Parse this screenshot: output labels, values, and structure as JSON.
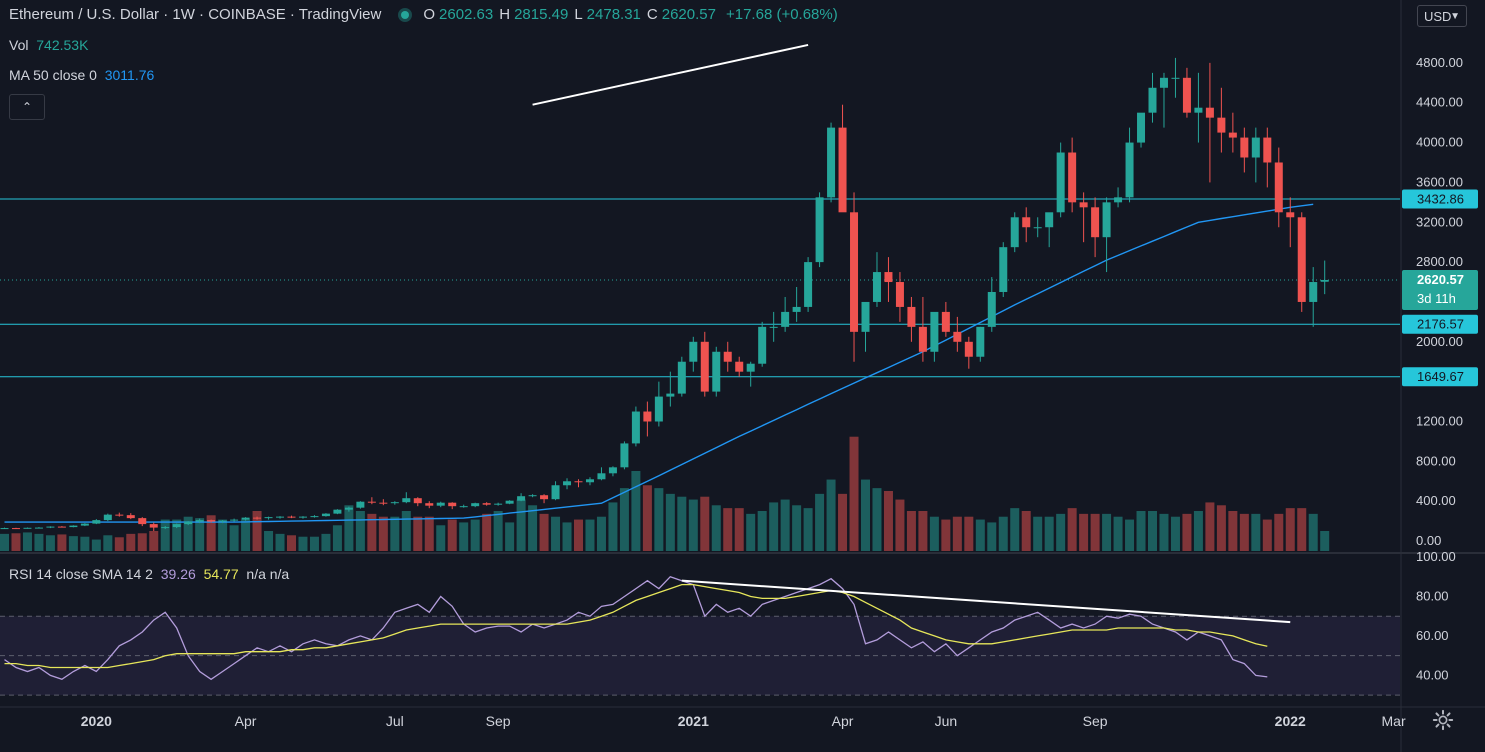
{
  "header": {
    "title": "Ethereum / U.S. Dollar · 1W · COINBASE · TradingView",
    "ohlc": [
      {
        "key": "O",
        "value": "2602.63"
      },
      {
        "key": "H",
        "value": "2815.49"
      },
      {
        "key": "L",
        "value": "2478.31"
      },
      {
        "key": "C",
        "value": "2620.57"
      }
    ],
    "change": "+17.68 (+0.68%)"
  },
  "volume_legend": {
    "label": "Vol",
    "value": "742.53K"
  },
  "ma_legend": {
    "label": "MA 50 close 0",
    "value": "3011.76"
  },
  "rsi_legend": {
    "label": "RSI 14 close SMA 14 2",
    "rsi_value": "39.26",
    "sma_value": "54.77",
    "na": "n/a n/a"
  },
  "currency": "USD",
  "colors": {
    "up": "#26a69a",
    "down": "#ef5350",
    "ma": "#2196f3",
    "rsi": "#b39ddb",
    "rsi_sma": "#e6e65a",
    "level": "#26c6da"
  },
  "chart_data": {
    "type": "candlestick",
    "timeframe": "1W",
    "price_axis": {
      "ticks": [
        "4800.00",
        "4400.00",
        "4000.00",
        "3600.00",
        "3200.00",
        "2800.00",
        "2000.00",
        "1200.00",
        "800.00",
        "400.00",
        "0.00"
      ],
      "range": [
        -100,
        5150
      ]
    },
    "time_axis": {
      "ticks": [
        "2020",
        "Apr",
        "Jul",
        "Sep",
        "2021",
        "Apr",
        "Jun",
        "Sep",
        "2022",
        "Mar"
      ]
    },
    "price_labels": [
      {
        "text": "3432.86",
        "kind": "level"
      },
      {
        "text": "2620.57",
        "sub": "3d 11h",
        "kind": "last"
      },
      {
        "text": "2176.57",
        "kind": "level"
      },
      {
        "text": "1649.67",
        "kind": "level"
      }
    ],
    "horizontal_levels": [
      3432.86,
      2176.57,
      1649.67
    ],
    "last_price": 2620.57,
    "trendline": {
      "from": [
        46,
        4380
      ],
      "to": [
        70,
        4980
      ]
    },
    "ohlc_weekly": [
      [
        130,
        135,
        125,
        130
      ],
      [
        130,
        133,
        126,
        128
      ],
      [
        128,
        136,
        124,
        133
      ],
      [
        133,
        140,
        127,
        135
      ],
      [
        135,
        148,
        130,
        145
      ],
      [
        145,
        150,
        138,
        140
      ],
      [
        140,
        158,
        138,
        155
      ],
      [
        155,
        180,
        150,
        175
      ],
      [
        175,
        220,
        170,
        210
      ],
      [
        210,
        275,
        200,
        265
      ],
      [
        265,
        285,
        245,
        260
      ],
      [
        260,
        280,
        220,
        230
      ],
      [
        230,
        240,
        150,
        170
      ],
      [
        170,
        185,
        100,
        135
      ],
      [
        135,
        150,
        120,
        140
      ],
      [
        140,
        175,
        130,
        170
      ],
      [
        170,
        200,
        160,
        195
      ],
      [
        195,
        225,
        180,
        210
      ],
      [
        210,
        215,
        185,
        195
      ],
      [
        195,
        210,
        180,
        205
      ],
      [
        205,
        225,
        195,
        215
      ],
      [
        215,
        240,
        205,
        235
      ],
      [
        235,
        245,
        215,
        230
      ],
      [
        230,
        245,
        215,
        240
      ],
      [
        240,
        250,
        225,
        245
      ],
      [
        245,
        255,
        230,
        240
      ],
      [
        240,
        250,
        225,
        245
      ],
      [
        245,
        260,
        235,
        250
      ],
      [
        250,
        280,
        245,
        275
      ],
      [
        275,
        320,
        270,
        315
      ],
      [
        315,
        345,
        295,
        335
      ],
      [
        335,
        400,
        325,
        395
      ],
      [
        395,
        440,
        370,
        385
      ],
      [
        385,
        420,
        360,
        380
      ],
      [
        380,
        400,
        365,
        390
      ],
      [
        390,
        490,
        380,
        430
      ],
      [
        430,
        440,
        350,
        380
      ],
      [
        380,
        400,
        330,
        355
      ],
      [
        355,
        395,
        340,
        385
      ],
      [
        385,
        390,
        320,
        350
      ],
      [
        350,
        365,
        335,
        350
      ],
      [
        350,
        385,
        340,
        380
      ],
      [
        380,
        390,
        355,
        365
      ],
      [
        365,
        385,
        355,
        375
      ],
      [
        375,
        410,
        370,
        405
      ],
      [
        405,
        480,
        400,
        450
      ],
      [
        450,
        470,
        440,
        460
      ],
      [
        460,
        470,
        380,
        420
      ],
      [
        420,
        600,
        410,
        560
      ],
      [
        560,
        630,
        520,
        600
      ],
      [
        600,
        620,
        540,
        590
      ],
      [
        590,
        640,
        560,
        620
      ],
      [
        620,
        740,
        610,
        680
      ],
      [
        680,
        750,
        650,
        740
      ],
      [
        740,
        1000,
        720,
        980
      ],
      [
        980,
        1350,
        950,
        1300
      ],
      [
        1300,
        1400,
        1050,
        1200
      ],
      [
        1200,
        1600,
        1150,
        1450
      ],
      [
        1450,
        1700,
        1350,
        1480
      ],
      [
        1480,
        1850,
        1450,
        1800
      ],
      [
        1800,
        2050,
        1700,
        2000
      ],
      [
        2000,
        2100,
        1450,
        1500
      ],
      [
        1500,
        1950,
        1450,
        1900
      ],
      [
        1900,
        2000,
        1700,
        1800
      ],
      [
        1800,
        1850,
        1650,
        1700
      ],
      [
        1700,
        1800,
        1550,
        1780
      ],
      [
        1780,
        2200,
        1750,
        2150
      ],
      [
        2150,
        2300,
        2000,
        2150
      ],
      [
        2150,
        2450,
        2100,
        2300
      ],
      [
        2300,
        2550,
        2200,
        2350
      ],
      [
        2350,
        2850,
        2300,
        2800
      ],
      [
        2800,
        3500,
        2750,
        3450
      ],
      [
        3450,
        4200,
        3400,
        4150
      ],
      [
        4150,
        4380,
        3500,
        3300
      ],
      [
        3300,
        3500,
        1800,
        2100
      ],
      [
        2100,
        2350,
        1900,
        2400
      ],
      [
        2400,
        2900,
        2350,
        2700
      ],
      [
        2700,
        2850,
        2400,
        2600
      ],
      [
        2600,
        2700,
        2200,
        2350
      ],
      [
        2350,
        2450,
        2000,
        2150
      ],
      [
        2150,
        2450,
        1800,
        1900
      ],
      [
        1900,
        2250,
        1800,
        2300
      ],
      [
        2300,
        2400,
        2050,
        2100
      ],
      [
        2100,
        2250,
        1900,
        2000
      ],
      [
        2000,
        2050,
        1730,
        1850
      ],
      [
        1850,
        2150,
        1800,
        2150
      ],
      [
        2150,
        2650,
        2100,
        2500
      ],
      [
        2500,
        3000,
        2450,
        2950
      ],
      [
        2950,
        3300,
        2900,
        3250
      ],
      [
        3250,
        3350,
        3000,
        3150
      ],
      [
        3150,
        3250,
        3050,
        3150
      ],
      [
        3150,
        3250,
        2950,
        3300
      ],
      [
        3300,
        4000,
        3250,
        3900
      ],
      [
        3900,
        4050,
        3300,
        3400
      ],
      [
        3400,
        3500,
        3000,
        3350
      ],
      [
        3350,
        3450,
        2850,
        3050
      ],
      [
        3050,
        3450,
        2700,
        3400
      ],
      [
        3400,
        3550,
        3350,
        3450
      ],
      [
        3450,
        4150,
        3400,
        4000
      ],
      [
        4000,
        4250,
        3950,
        4300
      ],
      [
        4300,
        4700,
        4200,
        4550
      ],
      [
        4550,
        4700,
        4150,
        4650
      ],
      [
        4650,
        4850,
        4450,
        4650
      ],
      [
        4650,
        4750,
        4250,
        4300
      ],
      [
        4300,
        4700,
        4000,
        4350
      ],
      [
        4350,
        4800,
        3600,
        4250
      ],
      [
        4250,
        4550,
        3900,
        4100
      ],
      [
        4100,
        4300,
        3900,
        4050
      ],
      [
        4050,
        4150,
        3700,
        3850
      ],
      [
        3850,
        4150,
        3600,
        4050
      ],
      [
        4050,
        4150,
        3550,
        3800
      ],
      [
        3800,
        3950,
        3150,
        3300
      ],
      [
        3300,
        3450,
        2950,
        3250
      ],
      [
        3250,
        3300,
        2300,
        2400
      ],
      [
        2400,
        2750,
        2150,
        2600
      ],
      [
        2602.63,
        2815.49,
        2478.31,
        2620.57
      ]
    ],
    "volume": [
      0.6,
      0.62,
      0.65,
      0.6,
      0.55,
      0.58,
      0.52,
      0.5,
      0.4,
      0.55,
      0.48,
      0.6,
      0.62,
      0.7,
      1.1,
      1.1,
      1.2,
      1.15,
      1.25,
      1.1,
      0.9,
      1.1,
      1.4,
      0.7,
      0.6,
      0.55,
      0.5,
      0.5,
      0.6,
      0.9,
      1.6,
      1.4,
      1.3,
      1.2,
      1.2,
      1.4,
      1.2,
      1.2,
      0.9,
      1.1,
      1.0,
      1.1,
      1.3,
      1.4,
      1.0,
      1.8,
      1.6,
      1.3,
      1.2,
      1.0,
      1.1,
      1.1,
      1.2,
      1.7,
      2.2,
      2.8,
      2.3,
      2.2,
      2.0,
      1.9,
      1.8,
      1.9,
      1.6,
      1.5,
      1.5,
      1.3,
      1.4,
      1.7,
      1.8,
      1.6,
      1.5,
      2.0,
      2.5,
      2.0,
      4.0,
      2.5,
      2.2,
      2.1,
      1.8,
      1.4,
      1.4,
      1.2,
      1.1,
      1.2,
      1.2,
      1.1,
      1.0,
      1.2,
      1.5,
      1.4,
      1.2,
      1.2,
      1.3,
      1.5,
      1.3,
      1.3,
      1.3,
      1.2,
      1.1,
      1.4,
      1.4,
      1.3,
      1.2,
      1.3,
      1.4,
      1.7,
      1.6,
      1.4,
      1.3,
      1.3,
      1.1,
      1.3,
      1.5,
      1.5,
      1.3,
      0.7
    ],
    "volume_scale_max": 4.2,
    "ma50_anchors": [
      [
        0,
        190
      ],
      [
        20,
        190
      ],
      [
        40,
        230
      ],
      [
        52,
        380
      ],
      [
        56,
        600
      ],
      [
        64,
        1050
      ],
      [
        72,
        1480
      ],
      [
        80,
        1900
      ],
      [
        88,
        2370
      ],
      [
        96,
        2820
      ],
      [
        104,
        3200
      ],
      [
        112,
        3350
      ],
      [
        114,
        3380
      ]
    ],
    "rsi": {
      "axis_ticks": [
        "100.00",
        "80.00",
        "60.00",
        "40.00"
      ],
      "range": [
        25,
        100
      ],
      "bands": {
        "upper": 70,
        "lower": 30
      },
      "values": [
        48,
        44,
        42,
        44,
        40,
        38,
        42,
        45,
        42,
        48,
        55,
        58,
        62,
        68,
        72,
        64,
        50,
        42,
        38,
        42,
        46,
        50,
        54,
        52,
        55,
        52,
        56,
        58,
        56,
        55,
        58,
        60,
        58,
        64,
        72,
        74,
        76,
        72,
        80,
        75,
        66,
        62,
        64,
        65,
        65,
        62,
        66,
        64,
        66,
        68,
        72,
        70,
        75,
        76,
        80,
        84,
        88,
        84,
        90,
        88,
        86,
        70,
        76,
        72,
        74,
        70,
        76,
        78,
        80,
        82,
        84,
        86,
        89,
        84,
        76,
        56,
        58,
        62,
        58,
        54,
        57,
        52,
        56,
        50,
        54,
        58,
        62,
        64,
        68,
        70,
        72,
        68,
        64,
        66,
        64,
        66,
        70,
        69,
        71,
        70,
        66,
        64,
        62,
        58,
        62,
        60,
        58,
        48,
        46,
        40,
        39.26
      ],
      "sma": [
        46,
        46,
        45,
        45,
        44,
        44,
        44,
        44,
        44,
        44,
        45,
        46,
        47,
        48,
        50,
        51,
        51,
        51,
        51,
        51,
        51,
        52,
        52,
        52,
        52,
        53,
        53,
        54,
        54,
        55,
        56,
        57,
        58,
        59,
        61,
        63,
        64,
        65,
        66,
        66,
        66,
        66,
        66,
        66,
        66,
        66,
        66,
        66,
        66,
        66,
        67,
        68,
        70,
        72,
        75,
        78,
        80,
        82,
        84,
        86,
        86,
        85,
        84,
        83,
        82,
        80,
        79,
        79,
        79,
        80,
        81,
        82,
        83,
        82,
        80,
        77,
        74,
        71,
        68,
        64,
        62,
        60,
        58,
        57,
        56,
        56,
        56,
        57,
        58,
        59,
        60,
        61,
        62,
        63,
        63,
        63,
        63,
        64,
        64,
        64,
        64,
        64,
        63,
        63,
        62,
        62,
        61,
        60,
        58,
        56,
        54.77
      ],
      "trendline": {
        "from": [
          59,
          88
        ],
        "to": [
          112,
          67
        ]
      }
    }
  }
}
